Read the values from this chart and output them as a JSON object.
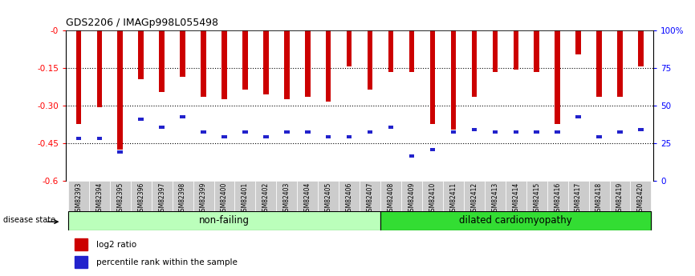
{
  "title": "GDS2206 / IMAGp998L055498",
  "samples": [
    "GSM82393",
    "GSM82394",
    "GSM82395",
    "GSM82396",
    "GSM82397",
    "GSM82398",
    "GSM82399",
    "GSM82400",
    "GSM82401",
    "GSM82402",
    "GSM82403",
    "GSM82404",
    "GSM82405",
    "GSM82406",
    "GSM82407",
    "GSM82408",
    "GSM82409",
    "GSM82410",
    "GSM82411",
    "GSM82412",
    "GSM82413",
    "GSM82414",
    "GSM82415",
    "GSM82416",
    "GSM82417",
    "GSM82418",
    "GSM82419",
    "GSM82420"
  ],
  "log2_values": [
    -0.375,
    -0.305,
    -0.475,
    -0.195,
    -0.245,
    -0.185,
    -0.265,
    -0.275,
    -0.235,
    -0.255,
    -0.275,
    -0.265,
    -0.285,
    -0.145,
    -0.235,
    -0.165,
    -0.165,
    -0.375,
    -0.395,
    -0.265,
    -0.165,
    -0.155,
    -0.165,
    -0.375,
    -0.095,
    -0.265,
    -0.265,
    -0.145
  ],
  "percentile_values": [
    -0.43,
    -0.43,
    -0.485,
    -0.355,
    -0.385,
    -0.345,
    -0.405,
    -0.425,
    -0.405,
    -0.425,
    -0.405,
    -0.405,
    -0.425,
    -0.425,
    -0.405,
    -0.385,
    -0.5,
    -0.475,
    -0.405,
    -0.395,
    -0.405,
    -0.405,
    -0.405,
    -0.405,
    -0.345,
    -0.425,
    -0.405,
    -0.395
  ],
  "non_failing_count": 15,
  "ylim_min": -0.6,
  "ylim_max": 0.0,
  "yticks": [
    -0.6,
    -0.45,
    -0.3,
    -0.15,
    0.0
  ],
  "ytick_labels": [
    "-0.6",
    "-0.45",
    "-0.30",
    "-0.15",
    "-0"
  ],
  "right_ytick_labels": [
    "0",
    "25",
    "50",
    "75",
    "100%"
  ],
  "bar_color": "#cc0000",
  "percentile_color": "#2222cc",
  "bg_color": "#ffffff",
  "plot_bg_color": "#ffffff",
  "non_failing_color": "#bbffbb",
  "dilated_color": "#33dd33",
  "grid_color": "#000000",
  "bar_width": 0.25
}
